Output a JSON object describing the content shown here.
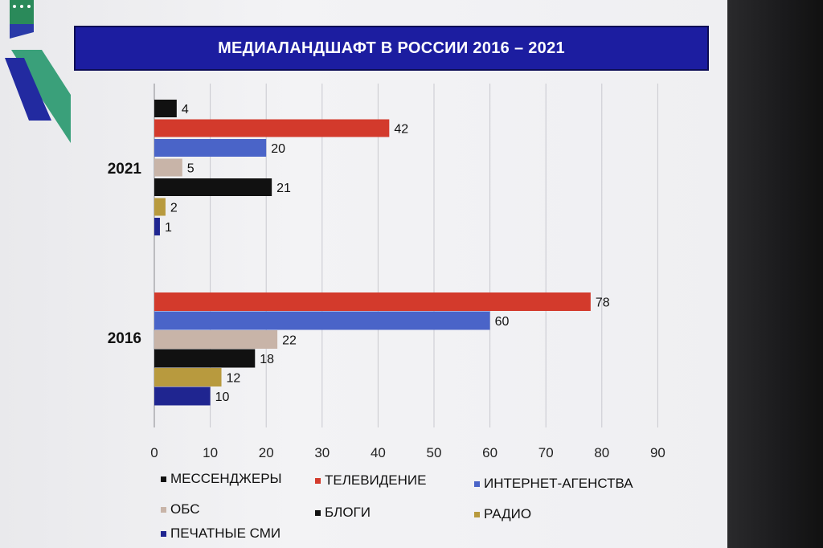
{
  "title": "МЕДИАЛАНДШАФТ В РОССИИ 2016 – 2021",
  "colors": {
    "title_bg": "#1c1da0",
    "messengers": "#111111",
    "tv": "#d33a2c",
    "internet": "#4a64c8",
    "obs": "#c8b4a8",
    "blogs": "#111111",
    "radio": "#b89a3e",
    "print": "#1f2590"
  },
  "chart_data": {
    "type": "bar",
    "orientation": "horizontal",
    "title": "МЕДИАЛАНДШАФТ В РОССИИ 2016 – 2021",
    "categories": [
      "2021",
      "2016"
    ],
    "xlim": [
      0,
      90
    ],
    "xticks": [
      "0",
      "10",
      "20",
      "30",
      "40",
      "50",
      "60",
      "70",
      "80",
      "90"
    ],
    "grid": true,
    "legend_position": "bottom",
    "series": [
      {
        "name": "МЕССЕНДЖЕРЫ",
        "color": "#111111",
        "values": [
          4,
          null
        ]
      },
      {
        "name": "ТЕЛЕВИДЕНИЕ",
        "color": "#d33a2c",
        "values": [
          42,
          78
        ]
      },
      {
        "name": "ИНТЕРНЕТ-АГЕНСТВА",
        "color": "#4a64c8",
        "values": [
          20,
          60
        ]
      },
      {
        "name": "ОБС",
        "color": "#c8b4a8",
        "values": [
          5,
          22
        ]
      },
      {
        "name": "БЛОГИ",
        "color": "#111111",
        "values": [
          21,
          18
        ]
      },
      {
        "name": "РАДИО",
        "color": "#b89a3e",
        "values": [
          2,
          12
        ]
      },
      {
        "name": "ПЕЧАТНЫЕ СМИ",
        "color": "#1f2590",
        "values": [
          1,
          10
        ]
      }
    ]
  }
}
